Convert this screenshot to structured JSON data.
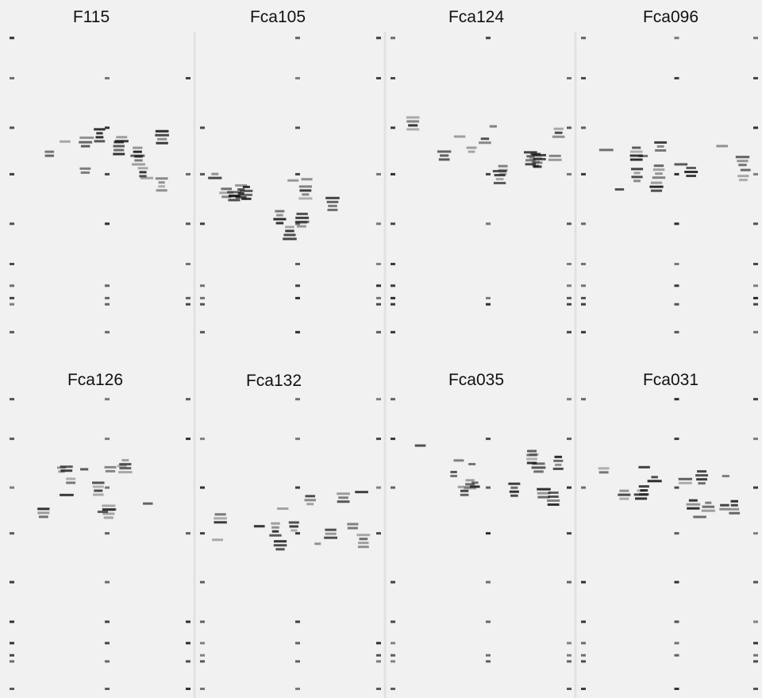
{
  "panels": [
    {
      "title": "F115"
    },
    {
      "title": "Fca105"
    },
    {
      "title": "Fca124"
    },
    {
      "title": "Fca096"
    },
    {
      "title": "Fca126"
    },
    {
      "title": "Fca132"
    },
    {
      "title": "Fca035"
    },
    {
      "title": "Fca031"
    }
  ]
}
